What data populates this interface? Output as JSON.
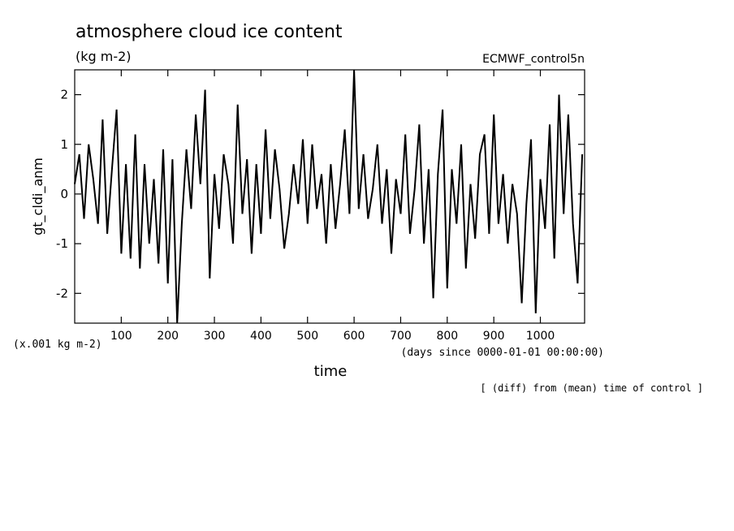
{
  "chart_data": {
    "type": "line",
    "title": "atmosphere cloud ice content",
    "subtitle": "(kg m-2)",
    "dataset_label": "ECMWF_control5n",
    "xlabel": "time",
    "x_units": "(days since 0000-01-01 00:00:00)",
    "ylabel": "gt_cldi_anm",
    "y_scale_note": "(x.001 kg m-2)",
    "footnote": "[ (diff) from (mean) time of control ]",
    "xlim": [
      0,
      1095
    ],
    "ylim": [
      -2.6,
      2.5
    ],
    "x_ticks": [
      100,
      200,
      300,
      400,
      500,
      600,
      700,
      800,
      900,
      1000
    ],
    "x_tick_labels": [
      "100",
      "200",
      "300",
      "400",
      "500",
      "600",
      "700",
      "800",
      "900",
      "1000"
    ],
    "y_ticks": [
      -2,
      -1,
      0,
      1,
      2
    ],
    "y_tick_labels": [
      "-2",
      "-1",
      "0",
      "1",
      "2"
    ],
    "grid": false,
    "line_color": "#000000",
    "series": [
      {
        "x": [
          0,
          10,
          20,
          30,
          40,
          50,
          60,
          70,
          80,
          90,
          100,
          110,
          120,
          130,
          140,
          150,
          160,
          170,
          180,
          190,
          200,
          210,
          220,
          230,
          240,
          250,
          260,
          270,
          280,
          290,
          300,
          310,
          320,
          330,
          340,
          350,
          360,
          370,
          380,
          390,
          400,
          410,
          420,
          430,
          440,
          450,
          460,
          470,
          480,
          490,
          500,
          510,
          520,
          530,
          540,
          550,
          560,
          570,
          580,
          590,
          600,
          610,
          620,
          630,
          640,
          650,
          660,
          670,
          680,
          690,
          700,
          710,
          720,
          730,
          740,
          750,
          760,
          770,
          780,
          790,
          800,
          810,
          820,
          830,
          840,
          850,
          860,
          870,
          880,
          890,
          900,
          910,
          920,
          930,
          940,
          950,
          960,
          970,
          980,
          990,
          1000,
          1010,
          1020,
          1030,
          1040,
          1050,
          1060,
          1070,
          1080,
          1090
        ],
        "values": [
          0.2,
          0.8,
          -0.5,
          1.0,
          0.3,
          -0.6,
          1.5,
          -0.8,
          0.5,
          1.7,
          -1.2,
          0.6,
          -1.3,
          1.2,
          -1.5,
          0.6,
          -1.0,
          0.3,
          -1.4,
          0.9,
          -1.8,
          0.7,
          -2.6,
          -0.6,
          0.9,
          -0.3,
          1.6,
          0.2,
          2.1,
          -1.7,
          0.4,
          -0.7,
          0.8,
          0.2,
          -1.0,
          1.8,
          -0.4,
          0.7,
          -1.2,
          0.6,
          -0.8,
          1.3,
          -0.5,
          0.9,
          0.1,
          -1.1,
          -0.4,
          0.6,
          -0.2,
          1.1,
          -0.6,
          1.0,
          -0.3,
          0.4,
          -1.0,
          0.6,
          -0.7,
          0.2,
          1.3,
          -0.4,
          2.5,
          -0.3,
          0.8,
          -0.5,
          0.1,
          1.0,
          -0.6,
          0.5,
          -1.2,
          0.3,
          -0.4,
          1.2,
          -0.8,
          0.1,
          1.4,
          -1.0,
          0.5,
          -2.1,
          0.4,
          1.7,
          -1.9,
          0.5,
          -0.6,
          1.0,
          -1.5,
          0.2,
          -0.9,
          0.8,
          1.2,
          -0.8,
          1.6,
          -0.6,
          0.4,
          -1.0,
          0.2,
          -0.4,
          -2.2,
          -0.2,
          1.1,
          -2.4,
          0.3,
          -0.7,
          1.4,
          -1.3,
          2.0,
          -0.4,
          1.6,
          -0.6,
          -1.8,
          0.8
        ]
      }
    ]
  }
}
